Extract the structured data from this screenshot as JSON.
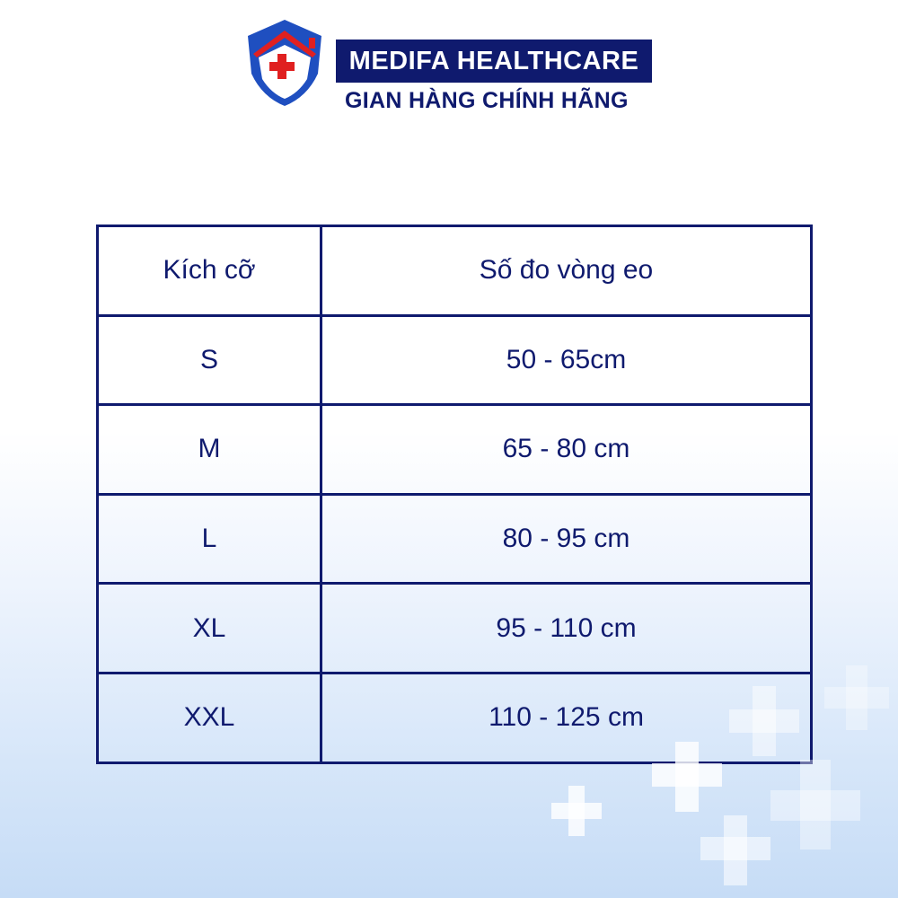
{
  "brand": {
    "name": "MEDIFA HEALTHCARE",
    "tagline": "GIAN HÀNG CHÍNH HÃNG",
    "colors": {
      "navy": "#0f1a6e",
      "red": "#e02020",
      "blue": "#1f5fd0"
    }
  },
  "table": {
    "headers": [
      "Kích cỡ",
      "Số đo vòng eo"
    ],
    "rows": [
      [
        "S",
        "50 - 65cm"
      ],
      [
        "M",
        "65 - 80 cm"
      ],
      [
        "L",
        "80 - 95 cm"
      ],
      [
        "XL",
        "95 - 110 cm"
      ],
      [
        "XXL",
        "110 - 125 cm"
      ]
    ]
  }
}
